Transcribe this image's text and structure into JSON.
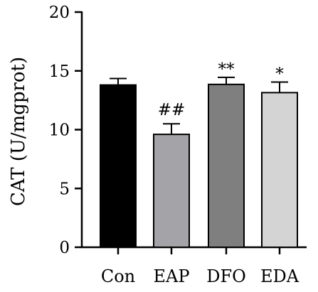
{
  "chart_data": {
    "type": "bar",
    "title": "",
    "xlabel": "",
    "ylabel": "CAT (U/mgprot)",
    "ylim": [
      0,
      20
    ],
    "yticks": [
      0,
      5,
      10,
      15,
      20
    ],
    "grid": false,
    "categories": [
      "Con",
      "EAP",
      "DFO",
      "EDA"
    ],
    "values": [
      13.8,
      9.6,
      13.85,
      13.15
    ],
    "errors": [
      0.55,
      0.9,
      0.6,
      0.9
    ],
    "colors": [
      "#000000",
      "#a3a3a8",
      "#7f7f7f",
      "#d4d4d4"
    ],
    "annotations": [
      "",
      "##",
      "**",
      "*"
    ]
  }
}
